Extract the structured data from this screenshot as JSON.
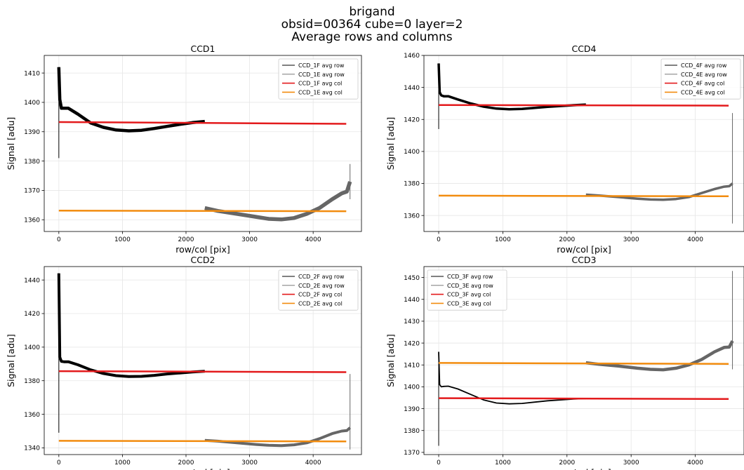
{
  "figure": {
    "title_lines": [
      "brigand",
      "obsid=00364   cube=0  layer=2",
      "Average rows and columns"
    ]
  },
  "chart_data": [
    {
      "type": "line",
      "title": "CCD1",
      "xlabel": "row/col [pix]",
      "ylabel": "Signal [adu]",
      "xlim": [
        -230,
        4760
      ],
      "ylim": [
        1356,
        1416
      ],
      "xticks": [
        0,
        1000,
        2000,
        3000,
        4000
      ],
      "yticks": [
        1360,
        1370,
        1380,
        1390,
        1400,
        1410
      ],
      "grid": true,
      "legend_position": "top-right",
      "series": [
        {
          "name": "CCD_1F avg row",
          "color": "#000000",
          "width": 4.5,
          "x": [
            0,
            15,
            40,
            80,
            150,
            300,
            500,
            700,
            900,
            1100,
            1300,
            1500,
            1700,
            1900,
            2100,
            2296
          ],
          "y": [
            1412,
            1401,
            1398,
            1398,
            1398,
            1396,
            1393,
            1391.5,
            1390.6,
            1390.3,
            1390.5,
            1391.1,
            1391.8,
            1392.5,
            1393.1,
            1393.5
          ],
          "spike": {
            "x": 0,
            "y_min": 1381,
            "y_max": 1412
          }
        },
        {
          "name": "CCD_1E avg row",
          "color": "#666666",
          "width": 5.5,
          "x": [
            2296,
            2500,
            2800,
            3100,
            3300,
            3500,
            3700,
            3900,
            4100,
            4300,
            4450,
            4530,
            4580
          ],
          "y": [
            1364,
            1363,
            1362,
            1361,
            1360.3,
            1360.1,
            1360.6,
            1362,
            1364,
            1367,
            1369,
            1369.6,
            1373
          ],
          "spike": {
            "x": 4580,
            "y_min": 1367,
            "y_max": 1379
          }
        },
        {
          "name": "CCD_1F avg col",
          "color": "#e31a1c",
          "width": 2.5,
          "x": [
            0,
            4520
          ],
          "y": [
            1393.3,
            1392.7
          ]
        },
        {
          "name": "CCD_1E avg col",
          "color": "#f28c0f",
          "width": 2.5,
          "x": [
            0,
            4520
          ],
          "y": [
            1363.1,
            1362.9
          ]
        }
      ]
    },
    {
      "type": "line",
      "title": "CCD4",
      "xlabel": "row/col [pix]",
      "ylabel": "Signal [adu]",
      "xlim": [
        -230,
        4760
      ],
      "ylim": [
        1350,
        1460
      ],
      "xticks": [
        0,
        1000,
        2000,
        3000,
        4000
      ],
      "yticks": [
        1360,
        1380,
        1400,
        1420,
        1440,
        1460
      ],
      "grid": true,
      "legend_position": "top-right",
      "series": [
        {
          "name": "CCD_4F avg row",
          "color": "#000000",
          "width": 3.5,
          "x": [
            0,
            15,
            40,
            80,
            150,
            300,
            500,
            700,
            900,
            1100,
            1300,
            1500,
            1700,
            1900,
            2100,
            2296
          ],
          "y": [
            1455,
            1437,
            1435,
            1434.5,
            1434.5,
            1432.5,
            1430,
            1428,
            1426.8,
            1426.4,
            1426.6,
            1427.2,
            1427.9,
            1428.4,
            1428.9,
            1429.3
          ],
          "spike": {
            "x": 0,
            "y_min": 1414,
            "y_max": 1455
          }
        },
        {
          "name": "CCD_4E avg row",
          "color": "#666666",
          "width": 3.5,
          "x": [
            2296,
            2500,
            2800,
            3100,
            3300,
            3500,
            3700,
            3900,
            4100,
            4300,
            4450,
            4530,
            4580
          ],
          "y": [
            1373,
            1372.5,
            1371.5,
            1370.5,
            1370,
            1369.8,
            1370.3,
            1371.5,
            1374,
            1376.5,
            1378,
            1378.3,
            1380
          ],
          "spike": {
            "x": 4580,
            "y_min": 1355,
            "y_max": 1424
          }
        },
        {
          "name": "CCD_4F avg col",
          "color": "#e31a1c",
          "width": 2.5,
          "x": [
            0,
            4520
          ],
          "y": [
            1429,
            1428.6
          ]
        },
        {
          "name": "CCD_4E avg col",
          "color": "#f28c0f",
          "width": 2.5,
          "x": [
            0,
            4520
          ],
          "y": [
            1372.4,
            1372
          ]
        }
      ]
    },
    {
      "type": "line",
      "title": "CCD2",
      "xlabel": "row/col [pix]",
      "ylabel": "Signal [adu]",
      "xlim": [
        -230,
        4760
      ],
      "ylim": [
        1336,
        1448
      ],
      "xticks": [
        0,
        1000,
        2000,
        3000,
        4000
      ],
      "yticks": [
        1340,
        1360,
        1380,
        1400,
        1420,
        1440
      ],
      "grid": true,
      "legend_position": "top-right",
      "series": [
        {
          "name": "CCD_2F avg row",
          "color": "#000000",
          "width": 4,
          "x": [
            0,
            15,
            40,
            80,
            150,
            300,
            500,
            700,
            900,
            1100,
            1300,
            1500,
            1700,
            1900,
            2100,
            2296
          ],
          "y": [
            1444,
            1394,
            1391.5,
            1391.3,
            1391.3,
            1389.5,
            1386.5,
            1384.3,
            1383,
            1382.5,
            1382.6,
            1383.2,
            1384,
            1384.6,
            1385.2,
            1385.6
          ],
          "spike": {
            "x": 0,
            "y_min": 1349,
            "y_max": 1444
          }
        },
        {
          "name": "CCD_2E avg row",
          "color": "#666666",
          "width": 4,
          "x": [
            2296,
            2500,
            2800,
            3100,
            3300,
            3500,
            3700,
            3900,
            4100,
            4300,
            4450,
            4530,
            4580
          ],
          "y": [
            1344.5,
            1344,
            1343,
            1342,
            1341.5,
            1341.3,
            1341.8,
            1343,
            1345.5,
            1348.5,
            1350,
            1350.3,
            1352
          ],
          "spike": {
            "x": 4580,
            "y_min": 1339,
            "y_max": 1384
          }
        },
        {
          "name": "CCD_2F avg col",
          "color": "#e31a1c",
          "width": 2.5,
          "x": [
            0,
            4520
          ],
          "y": [
            1385.7,
            1385.1
          ]
        },
        {
          "name": "CCD_2E avg col",
          "color": "#f28c0f",
          "width": 2.5,
          "x": [
            0,
            4520
          ],
          "y": [
            1344.2,
            1343.8
          ]
        }
      ]
    },
    {
      "type": "line",
      "title": "CCD3",
      "xlabel": "row/col [pix]",
      "ylabel": "Signal [adu]",
      "xlim": [
        -230,
        4760
      ],
      "ylim": [
        1369,
        1455
      ],
      "xticks": [
        0,
        1000,
        2000,
        3000,
        4000
      ],
      "yticks": [
        1370,
        1380,
        1390,
        1400,
        1410,
        1420,
        1430,
        1440,
        1450
      ],
      "grid": true,
      "legend_position": "top-left",
      "series": [
        {
          "name": "CCD_3F avg row",
          "color": "#000000",
          "width": 1.8,
          "x": [
            0,
            15,
            40,
            80,
            150,
            300,
            500,
            700,
            900,
            1100,
            1300,
            1500,
            1700,
            1900,
            2100,
            2296
          ],
          "y": [
            1416,
            1401,
            1400,
            1400.2,
            1400.3,
            1399,
            1396.5,
            1394,
            1392.6,
            1392.2,
            1392.4,
            1393,
            1393.6,
            1394,
            1394.4,
            1394.6
          ],
          "spike": {
            "x": 0,
            "y_min": 1373,
            "y_max": 1416
          }
        },
        {
          "name": "CCD_3E avg row",
          "color": "#666666",
          "width": 4.5,
          "x": [
            2296,
            2500,
            2800,
            3100,
            3300,
            3500,
            3700,
            3900,
            4100,
            4300,
            4450,
            4530,
            4580
          ],
          "y": [
            1411,
            1410.3,
            1409.5,
            1408.5,
            1408,
            1407.8,
            1408.5,
            1410,
            1412.5,
            1416,
            1418,
            1418.2,
            1421
          ],
          "spike": {
            "x": 4580,
            "y_min": 1408,
            "y_max": 1453
          }
        },
        {
          "name": "CCD_3F avg col",
          "color": "#e31a1c",
          "width": 2.5,
          "x": [
            0,
            4520
          ],
          "y": [
            1394.8,
            1394.4
          ]
        },
        {
          "name": "CCD_3E avg col",
          "color": "#f28c0f",
          "width": 2.5,
          "x": [
            0,
            4520
          ],
          "y": [
            1410.9,
            1410.5
          ]
        }
      ]
    }
  ]
}
